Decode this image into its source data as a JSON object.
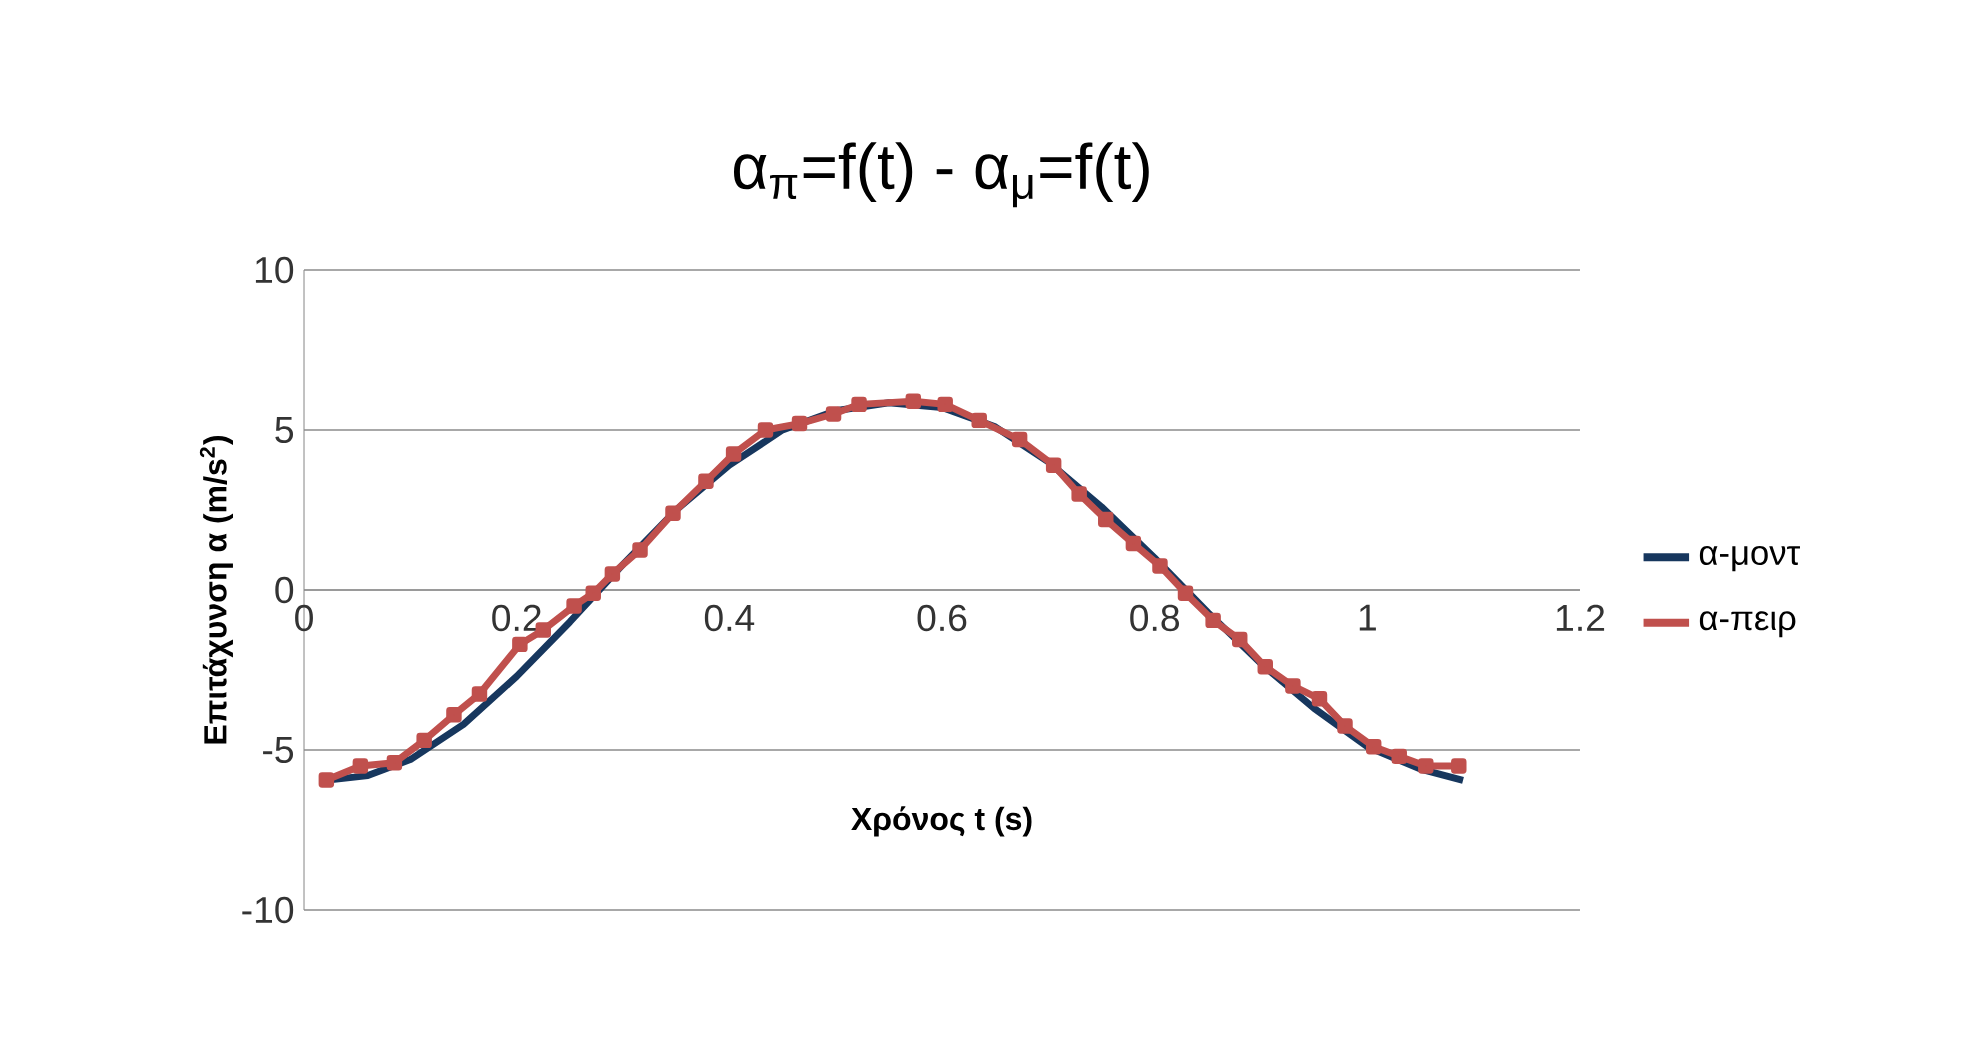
{
  "chart_data": {
    "type": "line",
    "title": "α$_{π}$=f(t) - α$_{μ}$=f(t)",
    "xlabel": "Χρόνος t (s)",
    "ylabel": "Επιτάχυνση α (m/s$^{2}$)",
    "xlim": [
      0,
      1.2
    ],
    "xticks": [
      0,
      0.2,
      0.4,
      0.6,
      0.8,
      1,
      1.2
    ],
    "ylim": [
      -10,
      10
    ],
    "yticks": [
      -10,
      -5,
      0,
      5,
      10
    ],
    "grid": "y",
    "legend": "right",
    "series": [
      {
        "name": "α-μοντ",
        "color": "#17375e",
        "marker": "none",
        "x": [
          0.02,
          0.06,
          0.1,
          0.15,
          0.2,
          0.25,
          0.3,
          0.35,
          0.4,
          0.45,
          0.5,
          0.55,
          0.6,
          0.65,
          0.7,
          0.75,
          0.8,
          0.85,
          0.9,
          0.95,
          1.0,
          1.05,
          1.09
        ],
        "values": [
          -5.95,
          -5.8,
          -5.3,
          -4.2,
          -2.7,
          -1.0,
          0.8,
          2.5,
          3.9,
          5.0,
          5.6,
          5.85,
          5.7,
          5.1,
          4.0,
          2.6,
          1.0,
          -0.7,
          -2.3,
          -3.7,
          -4.9,
          -5.6,
          -5.95
        ]
      },
      {
        "name": "α-πειρ",
        "color": "#c0504d",
        "marker": "square",
        "x": [
          0.021,
          0.053,
          0.085,
          0.113,
          0.141,
          0.165,
          0.203,
          0.225,
          0.254,
          0.272,
          0.29,
          0.316,
          0.347,
          0.378,
          0.404,
          0.434,
          0.466,
          0.498,
          0.522,
          0.573,
          0.603,
          0.635,
          0.673,
          0.705,
          0.729,
          0.754,
          0.78,
          0.805,
          0.829,
          0.855,
          0.88,
          0.904,
          0.93,
          0.955,
          0.979,
          1.006,
          1.03,
          1.055,
          1.086
        ],
        "values": [
          -5.94,
          -5.5,
          -5.4,
          -4.7,
          -3.9,
          -3.25,
          -1.7,
          -1.25,
          -0.5,
          -0.1,
          0.5,
          1.25,
          2.4,
          3.4,
          4.25,
          5.0,
          5.2,
          5.5,
          5.8,
          5.9,
          5.8,
          5.3,
          4.7,
          3.9,
          3.0,
          2.2,
          1.45,
          0.75,
          -0.1,
          -0.95,
          -1.55,
          -2.4,
          -3.0,
          -3.4,
          -4.25,
          -4.9,
          -5.2,
          -5.5,
          -5.5
        ]
      }
    ]
  }
}
